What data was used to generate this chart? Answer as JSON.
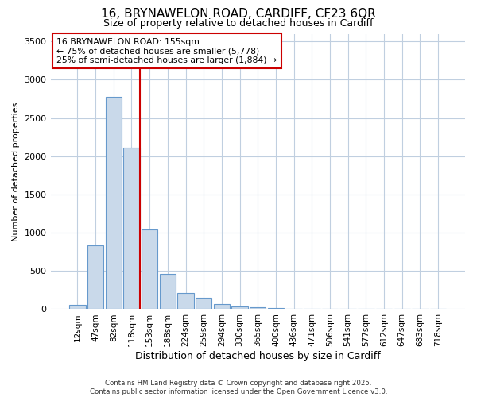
{
  "title_line1": "16, BRYNAWELON ROAD, CARDIFF, CF23 6QR",
  "title_line2": "Size of property relative to detached houses in Cardiff",
  "xlabel": "Distribution of detached houses by size in Cardiff",
  "ylabel": "Number of detached properties",
  "categories": [
    "12sqm",
    "47sqm",
    "82sqm",
    "118sqm",
    "153sqm",
    "188sqm",
    "224sqm",
    "259sqm",
    "294sqm",
    "330sqm",
    "365sqm",
    "400sqm",
    "436sqm",
    "471sqm",
    "506sqm",
    "541sqm",
    "577sqm",
    "612sqm",
    "647sqm",
    "683sqm",
    "718sqm"
  ],
  "values": [
    55,
    840,
    2770,
    2110,
    1040,
    460,
    210,
    150,
    65,
    40,
    22,
    12,
    4,
    2,
    1,
    0,
    0,
    0,
    0,
    0,
    0
  ],
  "bar_color": "#c9d9ea",
  "bar_edge_color": "#6699cc",
  "vline_bar_index": 3,
  "vline_color": "#cc0000",
  "annotation_title": "16 BRYNAWELON ROAD: 155sqm",
  "annotation_line2": "← 75% of detached houses are smaller (5,778)",
  "annotation_line3": "25% of semi-detached houses are larger (1,884) →",
  "annotation_box_facecolor": "#ffffff",
  "annotation_box_edgecolor": "#cc0000",
  "background_color": "#ffffff",
  "plot_bg_color": "#ffffff",
  "grid_color": "#c0cfe0",
  "ylim": [
    0,
    3600
  ],
  "yticks": [
    0,
    500,
    1000,
    1500,
    2000,
    2500,
    3000,
    3500
  ],
  "footer_line1": "Contains HM Land Registry data © Crown copyright and database right 2025.",
  "footer_line2": "Contains public sector information licensed under the Open Government Licence v3.0."
}
